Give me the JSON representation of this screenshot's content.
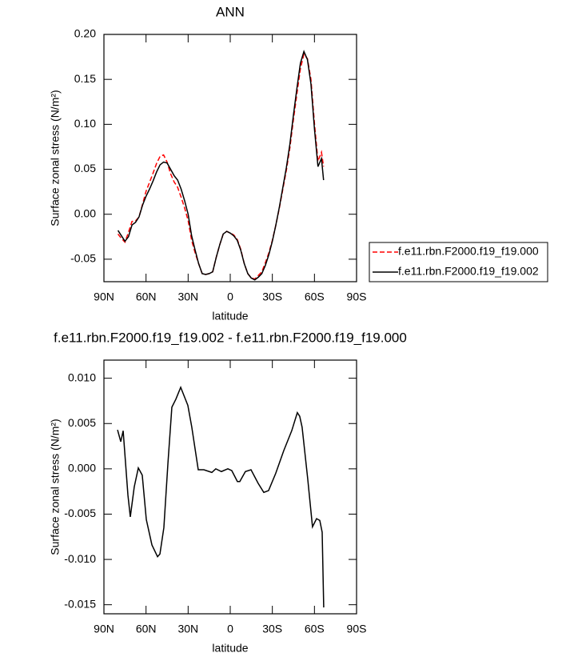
{
  "chart_data": [
    {
      "type": "line",
      "title": "ANN",
      "xlabel": "latitude",
      "ylabel": "Surface zonal stress (N/m²)",
      "x": [
        80,
        77.5,
        75,
        72.5,
        70,
        67.5,
        65,
        62.5,
        60,
        57.5,
        55,
        52.5,
        50,
        47.5,
        45,
        42.5,
        40,
        37.5,
        35,
        32.5,
        30,
        27.5,
        25,
        22.5,
        20,
        17.5,
        15,
        12.5,
        10,
        7.5,
        5,
        2.5,
        0,
        -2.5,
        -5,
        -7.5,
        -10,
        -12.5,
        -15,
        -17.5,
        -20,
        -22.5,
        -25,
        -27.5,
        -30,
        -32.5,
        -35,
        -37.5,
        -40,
        -42.5,
        -45,
        -47.5,
        -50,
        -52.5,
        -55,
        -57.5,
        -60,
        -62.5,
        -65,
        -66.5
      ],
      "series": [
        {
          "name": "f.e11.rbn.F2000.f19_f19.000",
          "color": "#ff0000",
          "style": "dashed",
          "values": [
            -0.022,
            -0.027,
            -0.031,
            -0.02,
            -0.008,
            -0.0075,
            -0.003,
            0.011,
            0.0255,
            0.0355,
            0.0457,
            0.0565,
            0.0644,
            0.066,
            0.058,
            0.045,
            0.036,
            0.03,
            0.019,
            0.007,
            -0.007,
            -0.029,
            -0.043,
            -0.055,
            -0.066,
            -0.067,
            -0.066,
            -0.064,
            -0.048,
            -0.034,
            -0.022,
            -0.019,
            -0.021,
            -0.023,
            -0.028,
            -0.039,
            -0.055,
            -0.066,
            -0.071,
            -0.072,
            -0.068,
            -0.064,
            -0.054,
            -0.043,
            -0.029,
            -0.012,
            0.007,
            0.028,
            0.049,
            0.074,
            0.105,
            0.134,
            0.162,
            0.178,
            0.173,
            0.15,
            0.101,
            0.059,
            0.069,
            0.053
          ]
        },
        {
          "name": "f.e11.rbn.F2000.f19_f19.002",
          "color": "#000000",
          "style": "solid",
          "values": [
            -0.018,
            -0.024,
            -0.03,
            -0.025,
            -0.012,
            -0.009,
            -0.003,
            0.01,
            0.02,
            0.028,
            0.037,
            0.047,
            0.055,
            0.058,
            0.057,
            0.05,
            0.043,
            0.038,
            0.028,
            0.015,
            0.0,
            -0.024,
            -0.04,
            -0.055,
            -0.066,
            -0.067,
            -0.066,
            -0.064,
            -0.048,
            -0.034,
            -0.022,
            -0.019,
            -0.021,
            -0.024,
            -0.029,
            -0.04,
            -0.055,
            -0.066,
            -0.071,
            -0.073,
            -0.07,
            -0.066,
            -0.057,
            -0.045,
            -0.03,
            -0.012,
            0.008,
            0.03,
            0.052,
            0.078,
            0.11,
            0.14,
            0.168,
            0.181,
            0.172,
            0.145,
            0.095,
            0.053,
            0.062,
            0.038
          ]
        }
      ],
      "xlim": [
        90,
        -90
      ],
      "xticks": [
        {
          "value": 90,
          "label": "90N"
        },
        {
          "value": 60,
          "label": "60N"
        },
        {
          "value": 30,
          "label": "30N"
        },
        0,
        {
          "value": -30,
          "label": "30S"
        },
        {
          "value": -60,
          "label": "60S"
        },
        {
          "value": -90,
          "label": "90S"
        }
      ],
      "ylim": [
        -0.075,
        0.2
      ],
      "yticks": [
        {
          "value": -0.05,
          "label": "-0.05"
        },
        {
          "value": 0,
          "label": "0.00"
        },
        {
          "value": 0.05,
          "label": "0.05"
        },
        {
          "value": 0.1,
          "label": "0.10"
        },
        {
          "value": 0.15,
          "label": "0.15"
        },
        {
          "value": 0.2,
          "label": "0.20"
        }
      ],
      "legend": "right"
    },
    {
      "type": "line",
      "title": "f.e11.rbn.F2000.f19_f19.002 - f.e11.rbn.F2000.f19_f19.000",
      "xlabel": "latitude",
      "ylabel": "Surface zonal stress (N/m²)",
      "x": [
        80.3,
        78,
        76.3,
        72.9,
        71.2,
        68.4,
        65.5,
        62.7,
        59.8,
        55.8,
        51.8,
        50.1,
        47.3,
        44.4,
        41.6,
        38.7,
        35.3,
        30.2,
        27.4,
        22.8,
        18.8,
        13.1,
        10.3,
        6.3,
        1.7,
        -1.1,
        -5.1,
        -6.8,
        -10.8,
        -14.8,
        -19.9,
        -23.9,
        -27.3,
        -32.4,
        -38.1,
        -43.8,
        -47.8,
        -49.5,
        -51.2,
        -55.2,
        -58.6,
        -61.5,
        -63.8,
        -65.5,
        -66.6
      ],
      "series": [
        {
          "color": "#000000",
          "style": "solid",
          "values": [
            0.0043,
            0.003,
            0.0042,
            -0.0029,
            -0.0053,
            -0.002,
            0.0001,
            -0.0007,
            -0.0056,
            -0.0084,
            -0.0097,
            -0.0094,
            -0.0065,
            0.0006,
            0.0068,
            0.0077,
            0.009,
            0.007,
            0.0046,
            -0.0001,
            -0.0001,
            -0.0004,
            0,
            -0.0003,
            0,
            -0.0002,
            -0.0014,
            -0.0014,
            -0.0003,
            -0.0001,
            -0.0016,
            -0.0026,
            -0.0024,
            -0.0005,
            0.002,
            0.0042,
            0.0062,
            0.0058,
            0.0046,
            -0.0011,
            -0.0064,
            -0.0055,
            -0.0057,
            -0.007,
            -0.0153
          ]
        }
      ],
      "xlim": [
        90,
        -90
      ],
      "xticks": [
        {
          "value": 90,
          "label": "90N"
        },
        {
          "value": 60,
          "label": "60N"
        },
        {
          "value": 30,
          "label": "30N"
        },
        0,
        {
          "value": -30,
          "label": "30S"
        },
        {
          "value": -60,
          "label": "60S"
        },
        {
          "value": -90,
          "label": "90S"
        }
      ],
      "ylim": [
        -0.016,
        0.012
      ],
      "yticks": [
        {
          "value": -0.015,
          "label": "-0.015"
        },
        {
          "value": -0.01,
          "label": "-0.010"
        },
        {
          "value": -0.005,
          "label": "-0.005"
        },
        {
          "value": 0,
          "label": "0.000"
        },
        {
          "value": 0.005,
          "label": "0.005"
        },
        {
          "value": 0.01,
          "label": "0.010"
        }
      ]
    }
  ]
}
